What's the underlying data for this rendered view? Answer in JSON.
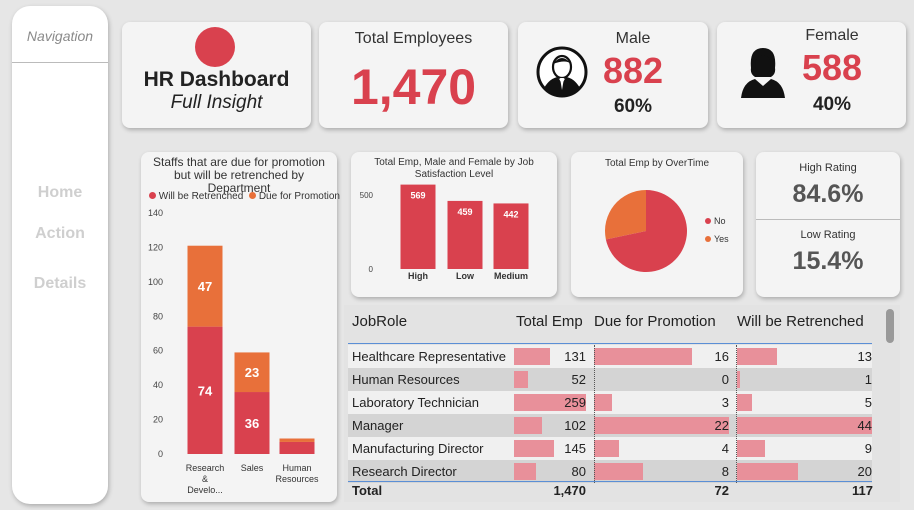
{
  "nav": {
    "title": "Navigation",
    "items": [
      {
        "label": "Home"
      },
      {
        "label": "Action"
      },
      {
        "label": "Details"
      }
    ]
  },
  "header": {
    "title": "HR Dashboard",
    "subtitle": "Full Insight",
    "logo_color": "#d9414e"
  },
  "kpi": {
    "total": {
      "label": "Total Employees",
      "value": "1,470"
    },
    "male": {
      "label": "Male",
      "value": "882",
      "pct": "60%"
    },
    "female": {
      "label": "Female",
      "value": "588",
      "pct": "40%"
    },
    "high_rating": {
      "label": "High Rating",
      "value": "84.6%"
    },
    "low_rating": {
      "label": "Low Rating",
      "value": "15.4%"
    }
  },
  "colors": {
    "accent": "#d9414e",
    "orange": "#e8703a",
    "bar_light": "#e8909a"
  },
  "chart_data": [
    {
      "type": "bar",
      "stacked": true,
      "title": "Staffs that are due for promotion but will be retrenched by Department",
      "categories": [
        "Research & Develo...",
        "Sales",
        "Human Resources"
      ],
      "series": [
        {
          "name": "Will be Retrenched",
          "values": [
            74,
            36,
            7
          ],
          "color": "#d9414e"
        },
        {
          "name": "Due for Promotion",
          "values": [
            47,
            23,
            2
          ],
          "color": "#e8703a"
        }
      ],
      "yticks": [
        "0",
        "20",
        "40",
        "60",
        "80",
        "100",
        "120",
        "140"
      ],
      "ylim": [
        0,
        140
      ],
      "legend": "top"
    },
    {
      "type": "bar",
      "title": "Total Emp, Male and Female by Job Satisfaction Level",
      "categories": [
        "High",
        "Low",
        "Medium"
      ],
      "values": [
        569,
        459,
        442
      ],
      "value_labels": [
        "569",
        "459",
        "442"
      ],
      "yticks": [
        "0",
        "500"
      ],
      "ylim": [
        0,
        600
      ]
    },
    {
      "type": "pie",
      "title": "Total Emp by OverTime",
      "labels": [
        "No",
        "Yes"
      ],
      "values": [
        1054,
        416
      ],
      "colors": [
        "#d9414e",
        "#e8703a"
      ],
      "legend": "right"
    }
  ],
  "table": {
    "headers": [
      "JobRole",
      "Total Emp",
      "Due for Promotion",
      "Will be Retrenched"
    ],
    "rows": [
      {
        "role": "Healthcare Representative",
        "total": "131",
        "promo": "16",
        "retr": "13",
        "t": 131,
        "p": 16,
        "r": 13
      },
      {
        "role": "Human Resources",
        "total": "52",
        "promo": "0",
        "retr": "1",
        "t": 52,
        "p": 0,
        "r": 1
      },
      {
        "role": "Laboratory Technician",
        "total": "259",
        "promo": "3",
        "retr": "5",
        "t": 259,
        "p": 3,
        "r": 5
      },
      {
        "role": "Manager",
        "total": "102",
        "promo": "22",
        "retr": "44",
        "t": 102,
        "p": 22,
        "r": 44
      },
      {
        "role": "Manufacturing Director",
        "total": "145",
        "promo": "4",
        "retr": "9",
        "t": 145,
        "p": 4,
        "r": 9
      },
      {
        "role": "Research Director",
        "total": "80",
        "promo": "8",
        "retr": "20",
        "t": 80,
        "p": 8,
        "r": 20
      }
    ],
    "total": {
      "label": "Total",
      "total": "1,470",
      "promo": "72",
      "retr": "117"
    }
  }
}
